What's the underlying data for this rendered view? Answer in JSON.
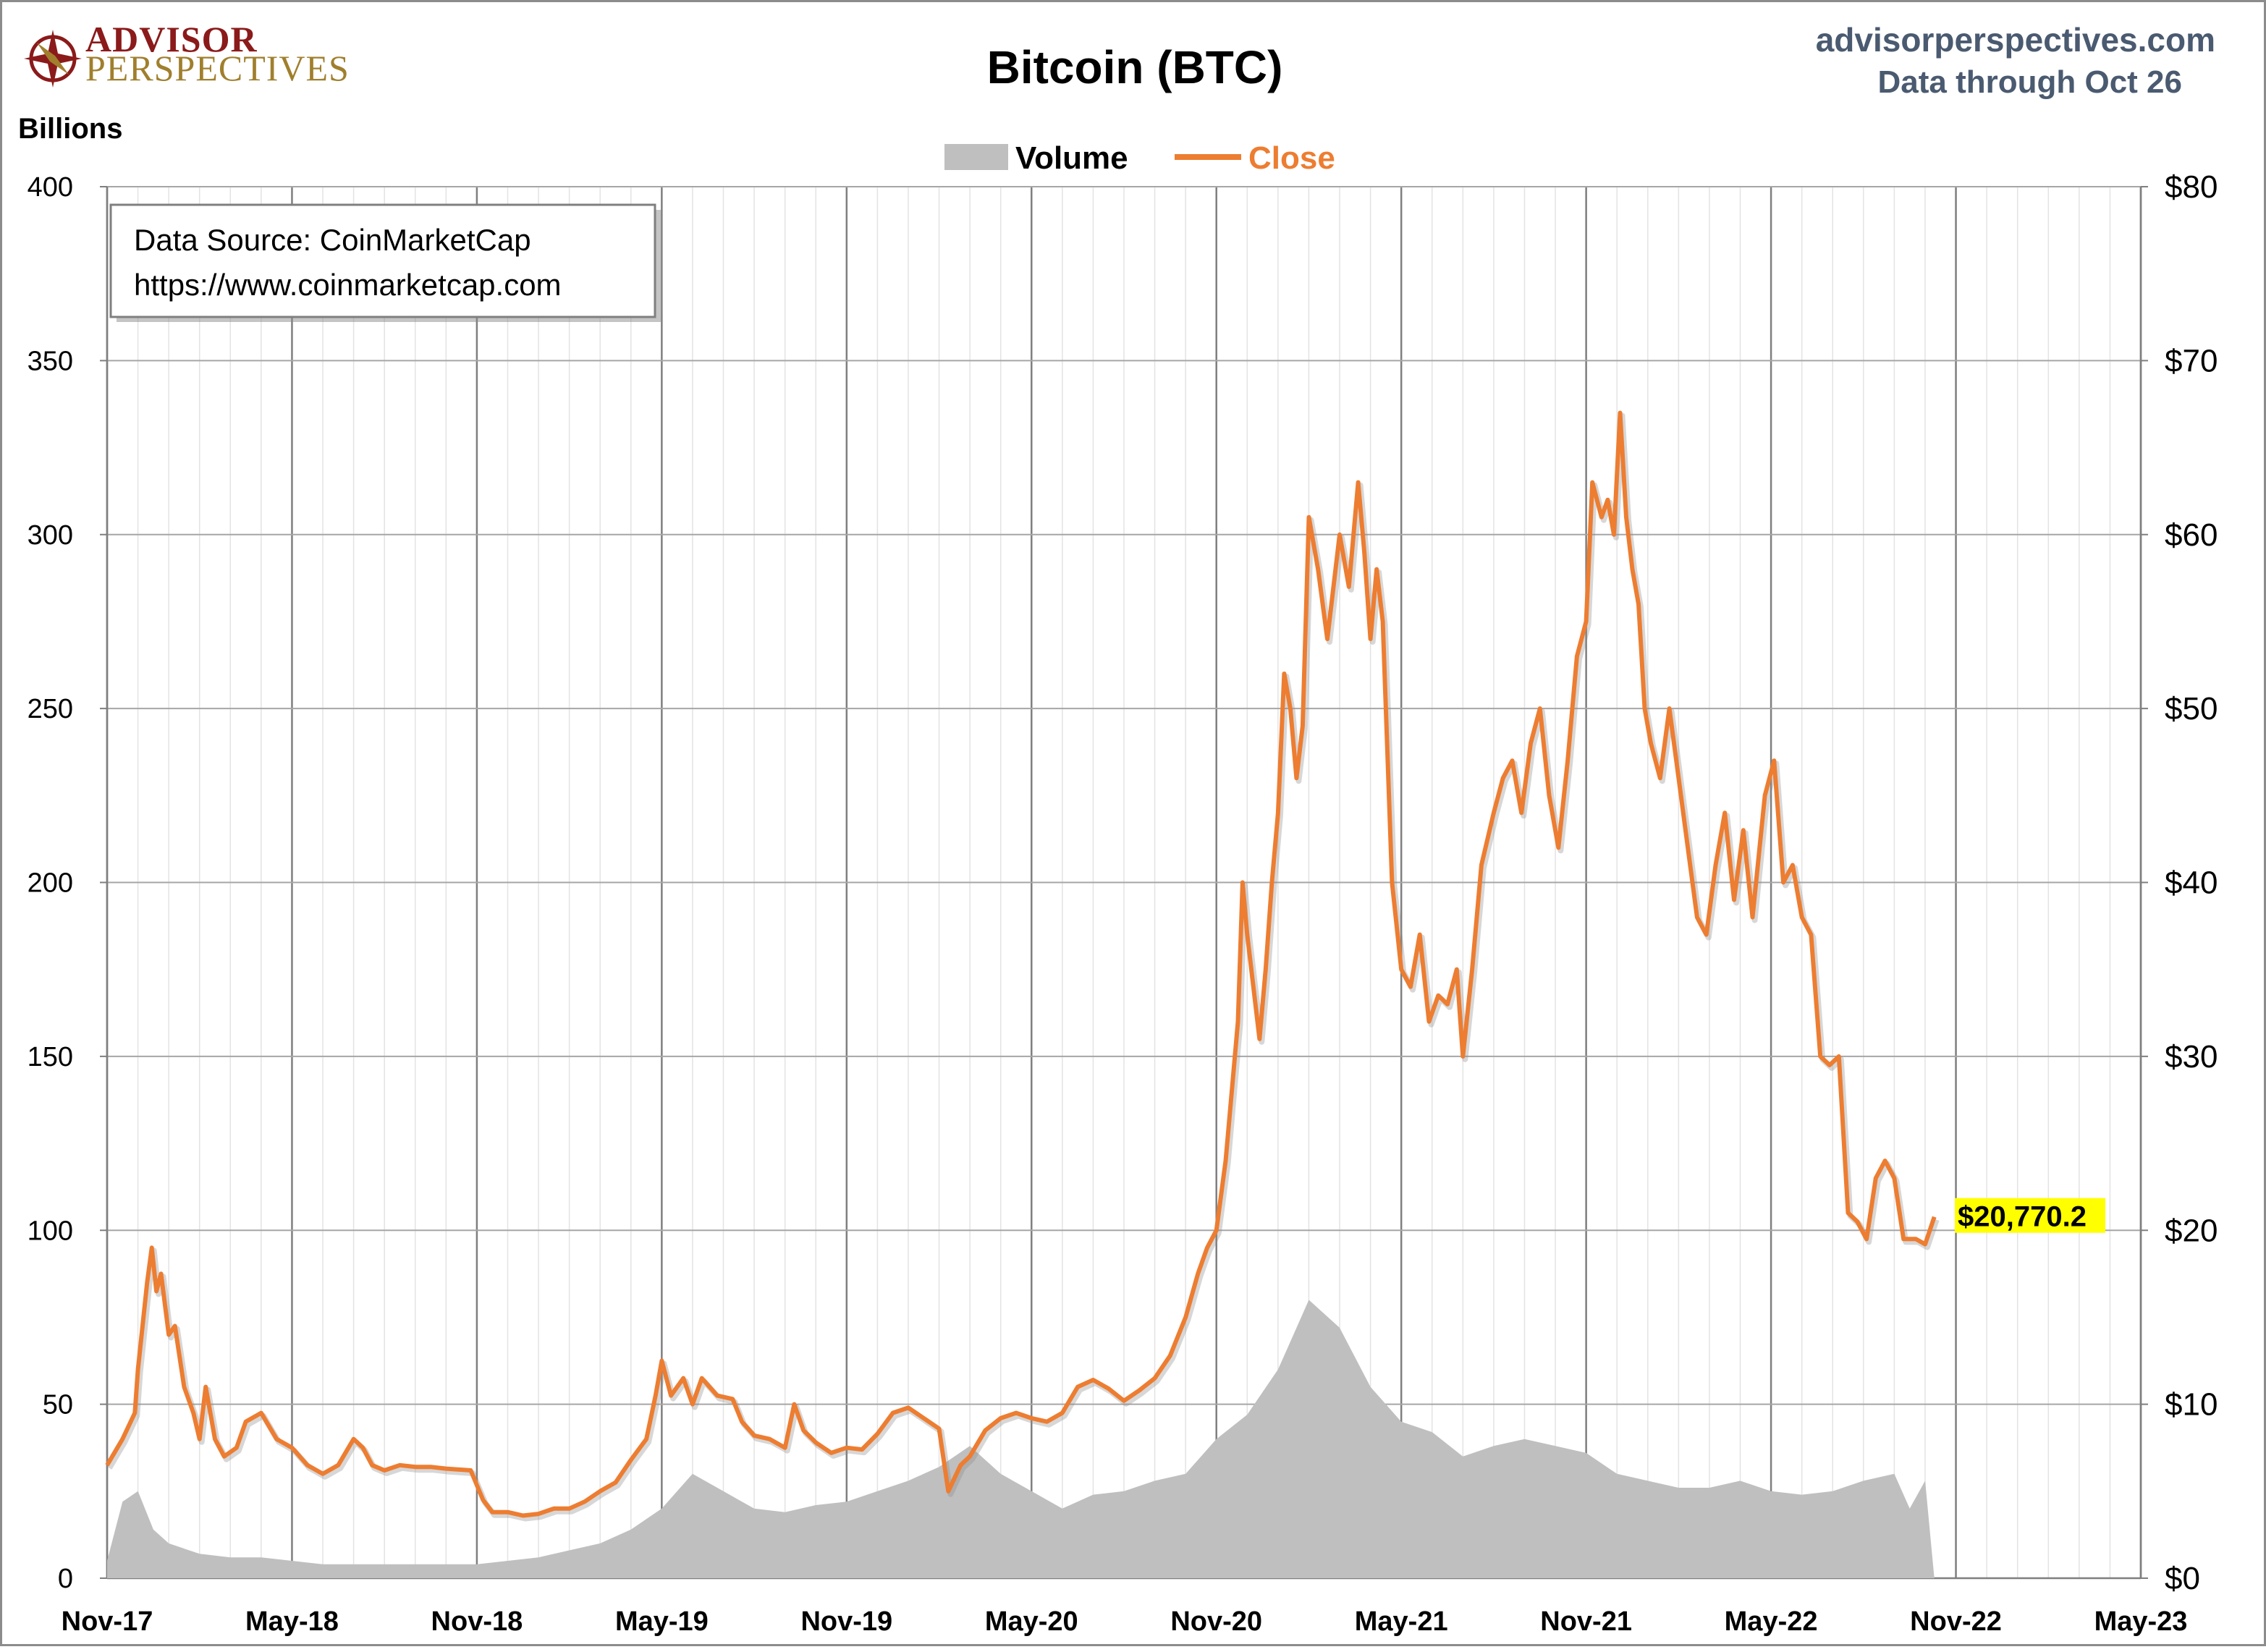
{
  "header": {
    "logo_top": "ADVISOR",
    "logo_bottom": "PERSPECTIVES",
    "title": "Bitcoin (BTC)",
    "site": "advisorperspectives.com",
    "data_through": "Data through Oct 26",
    "left_unit": "Billions"
  },
  "source_box": {
    "line1": "Data Source: CoinMarketCap",
    "line2": "https://www.coinmarketcap.com"
  },
  "colors": {
    "volume": "#bfbfbf",
    "close": "#ed7d31",
    "grid": "#a6a6a6",
    "highlight": "#ffff00"
  },
  "chart_data": {
    "type": "line",
    "title": "Bitcoin (BTC)",
    "ylabel": "Billions",
    "x_labels": [
      "Nov-17",
      "May-18",
      "Nov-18",
      "May-19",
      "Nov-19",
      "May-20",
      "Nov-20",
      "May-21",
      "Nov-21",
      "May-22",
      "Nov-22",
      "May-23"
    ],
    "x_range": [
      "Nov-17",
      "May-23"
    ],
    "ylim_left": [
      0,
      400
    ],
    "y_ticks_left": [
      "0",
      "50",
      "100",
      "150",
      "200",
      "250",
      "300",
      "350",
      "400"
    ],
    "ylim_right": [
      0,
      80
    ],
    "y_ticks_right": [
      "$0",
      "$10",
      "$20",
      "$30",
      "$40",
      "$50",
      "$60",
      "$70",
      "$80"
    ],
    "grid": true,
    "legend_position": "top-center",
    "last_value_label": "$20,770.2",
    "series": [
      {
        "name": "Volume",
        "kind": "area",
        "axis": "left",
        "points": [
          [
            0,
            5
          ],
          [
            0.5,
            22
          ],
          [
            1,
            25
          ],
          [
            1.5,
            14
          ],
          [
            2,
            10
          ],
          [
            3,
            7
          ],
          [
            4,
            6
          ],
          [
            5,
            6
          ],
          [
            6,
            5
          ],
          [
            7,
            4
          ],
          [
            8,
            4
          ],
          [
            9,
            4
          ],
          [
            10,
            4
          ],
          [
            11,
            4
          ],
          [
            12,
            4
          ],
          [
            13,
            5
          ],
          [
            14,
            6
          ],
          [
            15,
            8
          ],
          [
            16,
            10
          ],
          [
            17,
            14
          ],
          [
            18,
            20
          ],
          [
            19,
            30
          ],
          [
            20,
            25
          ],
          [
            21,
            20
          ],
          [
            22,
            19
          ],
          [
            23,
            21
          ],
          [
            24,
            22
          ],
          [
            25,
            25
          ],
          [
            26,
            28
          ],
          [
            27,
            32
          ],
          [
            28,
            38
          ],
          [
            29,
            30
          ],
          [
            30,
            25
          ],
          [
            31,
            20
          ],
          [
            32,
            24
          ],
          [
            33,
            25
          ],
          [
            34,
            28
          ],
          [
            35,
            30
          ],
          [
            36,
            40
          ],
          [
            37,
            47
          ],
          [
            38,
            60
          ],
          [
            39,
            80
          ],
          [
            40,
            72
          ],
          [
            41,
            55
          ],
          [
            42,
            45
          ],
          [
            43,
            42
          ],
          [
            44,
            35
          ],
          [
            45,
            38
          ],
          [
            46,
            40
          ],
          [
            47,
            38
          ],
          [
            48,
            36
          ],
          [
            49,
            30
          ],
          [
            50,
            28
          ],
          [
            51,
            26
          ],
          [
            52,
            26
          ],
          [
            53,
            28
          ],
          [
            54,
            25
          ],
          [
            55,
            24
          ],
          [
            56,
            25
          ],
          [
            57,
            28
          ],
          [
            58,
            30
          ],
          [
            58.5,
            20
          ],
          [
            59,
            28
          ],
          [
            59.3,
            0
          ]
        ]
      },
      {
        "name": "Close",
        "kind": "line",
        "axis": "right",
        "points": [
          [
            0,
            6.5
          ],
          [
            0.5,
            8
          ],
          [
            0.9,
            9.5
          ],
          [
            1,
            12
          ],
          [
            1.3,
            17
          ],
          [
            1.45,
            19
          ],
          [
            1.6,
            16.5
          ],
          [
            1.75,
            17.5
          ],
          [
            2,
            14
          ],
          [
            2.2,
            14.5
          ],
          [
            2.5,
            11
          ],
          [
            2.8,
            9.5
          ],
          [
            3,
            8
          ],
          [
            3.2,
            11
          ],
          [
            3.5,
            8
          ],
          [
            3.8,
            7
          ],
          [
            4.2,
            7.5
          ],
          [
            4.5,
            9
          ],
          [
            5,
            9.5
          ],
          [
            5.5,
            8
          ],
          [
            6,
            7.5
          ],
          [
            6.5,
            6.5
          ],
          [
            7,
            6
          ],
          [
            7.5,
            6.5
          ],
          [
            8,
            8
          ],
          [
            8.3,
            7.5
          ],
          [
            8.6,
            6.5
          ],
          [
            9,
            6.2
          ],
          [
            9.5,
            6.5
          ],
          [
            10,
            6.4
          ],
          [
            10.5,
            6.4
          ],
          [
            11,
            6.3
          ],
          [
            11.8,
            6.2
          ],
          [
            12.2,
            4.5
          ],
          [
            12.5,
            3.8
          ],
          [
            13,
            3.8
          ],
          [
            13.5,
            3.6
          ],
          [
            14,
            3.7
          ],
          [
            14.5,
            4
          ],
          [
            15,
            4
          ],
          [
            15.5,
            4.4
          ],
          [
            16,
            5
          ],
          [
            16.5,
            5.5
          ],
          [
            17,
            6.8
          ],
          [
            17.5,
            8
          ],
          [
            17.8,
            10.5
          ],
          [
            18,
            12.5
          ],
          [
            18.3,
            10.5
          ],
          [
            18.7,
            11.5
          ],
          [
            19,
            10
          ],
          [
            19.3,
            11.5
          ],
          [
            19.8,
            10.5
          ],
          [
            20.3,
            10.3
          ],
          [
            20.6,
            9
          ],
          [
            21,
            8.2
          ],
          [
            21.5,
            8
          ],
          [
            22,
            7.5
          ],
          [
            22.3,
            10
          ],
          [
            22.6,
            8.5
          ],
          [
            23,
            7.8
          ],
          [
            23.5,
            7.2
          ],
          [
            24,
            7.5
          ],
          [
            24.5,
            7.4
          ],
          [
            25,
            8.3
          ],
          [
            25.5,
            9.5
          ],
          [
            26,
            9.8
          ],
          [
            26.5,
            9.2
          ],
          [
            27,
            8.6
          ],
          [
            27.3,
            5
          ],
          [
            27.7,
            6.5
          ],
          [
            28,
            7
          ],
          [
            28.5,
            8.5
          ],
          [
            29,
            9.2
          ],
          [
            29.5,
            9.5
          ],
          [
            30,
            9.2
          ],
          [
            30.5,
            9
          ],
          [
            31,
            9.5
          ],
          [
            31.5,
            11
          ],
          [
            32,
            11.4
          ],
          [
            32.5,
            10.9
          ],
          [
            33,
            10.2
          ],
          [
            33.5,
            10.8
          ],
          [
            34,
            11.5
          ],
          [
            34.5,
            12.8
          ],
          [
            35,
            15
          ],
          [
            35.4,
            17.5
          ],
          [
            35.7,
            19
          ],
          [
            36,
            20
          ],
          [
            36.3,
            24
          ],
          [
            36.5,
            28
          ],
          [
            36.7,
            32
          ],
          [
            36.85,
            40
          ],
          [
            37,
            37
          ],
          [
            37.2,
            34
          ],
          [
            37.4,
            31
          ],
          [
            37.6,
            35
          ],
          [
            37.8,
            40
          ],
          [
            38,
            44
          ],
          [
            38.2,
            52
          ],
          [
            38.4,
            50
          ],
          [
            38.6,
            46
          ],
          [
            38.8,
            49
          ],
          [
            39,
            61
          ],
          [
            39.3,
            58
          ],
          [
            39.6,
            54
          ],
          [
            40,
            60
          ],
          [
            40.3,
            57
          ],
          [
            40.6,
            63
          ],
          [
            40.8,
            59
          ],
          [
            41,
            54
          ],
          [
            41.2,
            58
          ],
          [
            41.4,
            55
          ],
          [
            41.7,
            40
          ],
          [
            42,
            35
          ],
          [
            42.3,
            34
          ],
          [
            42.6,
            37
          ],
          [
            42.9,
            32
          ],
          [
            43.2,
            33.5
          ],
          [
            43.5,
            33
          ],
          [
            43.8,
            35
          ],
          [
            44,
            30
          ],
          [
            44.3,
            35
          ],
          [
            44.6,
            41
          ],
          [
            45,
            44
          ],
          [
            45.3,
            46
          ],
          [
            45.6,
            47
          ],
          [
            45.9,
            44
          ],
          [
            46.2,
            48
          ],
          [
            46.5,
            50
          ],
          [
            46.8,
            45
          ],
          [
            47.1,
            42
          ],
          [
            47.4,
            47
          ],
          [
            47.7,
            53
          ],
          [
            48,
            55
          ],
          [
            48.2,
            63
          ],
          [
            48.5,
            61
          ],
          [
            48.7,
            62
          ],
          [
            48.9,
            60
          ],
          [
            49.1,
            67
          ],
          [
            49.3,
            61
          ],
          [
            49.5,
            58
          ],
          [
            49.7,
            56
          ],
          [
            49.9,
            50
          ],
          [
            50.1,
            48
          ],
          [
            50.4,
            46
          ],
          [
            50.7,
            50
          ],
          [
            51,
            46
          ],
          [
            51.3,
            42
          ],
          [
            51.6,
            38
          ],
          [
            51.9,
            37
          ],
          [
            52.2,
            41
          ],
          [
            52.5,
            44
          ],
          [
            52.8,
            39
          ],
          [
            53.1,
            43
          ],
          [
            53.4,
            38
          ],
          [
            53.8,
            45
          ],
          [
            54.1,
            47
          ],
          [
            54.4,
            40
          ],
          [
            54.7,
            41
          ],
          [
            55,
            38
          ],
          [
            55.3,
            37
          ],
          [
            55.6,
            30
          ],
          [
            55.9,
            29.5
          ],
          [
            56.2,
            30
          ],
          [
            56.5,
            21
          ],
          [
            56.8,
            20.5
          ],
          [
            57.1,
            19.5
          ],
          [
            57.4,
            23
          ],
          [
            57.7,
            24
          ],
          [
            58,
            23
          ],
          [
            58.3,
            19.5
          ],
          [
            58.7,
            19.5
          ],
          [
            59,
            19.2
          ],
          [
            59.3,
            20.77
          ]
        ]
      }
    ]
  }
}
